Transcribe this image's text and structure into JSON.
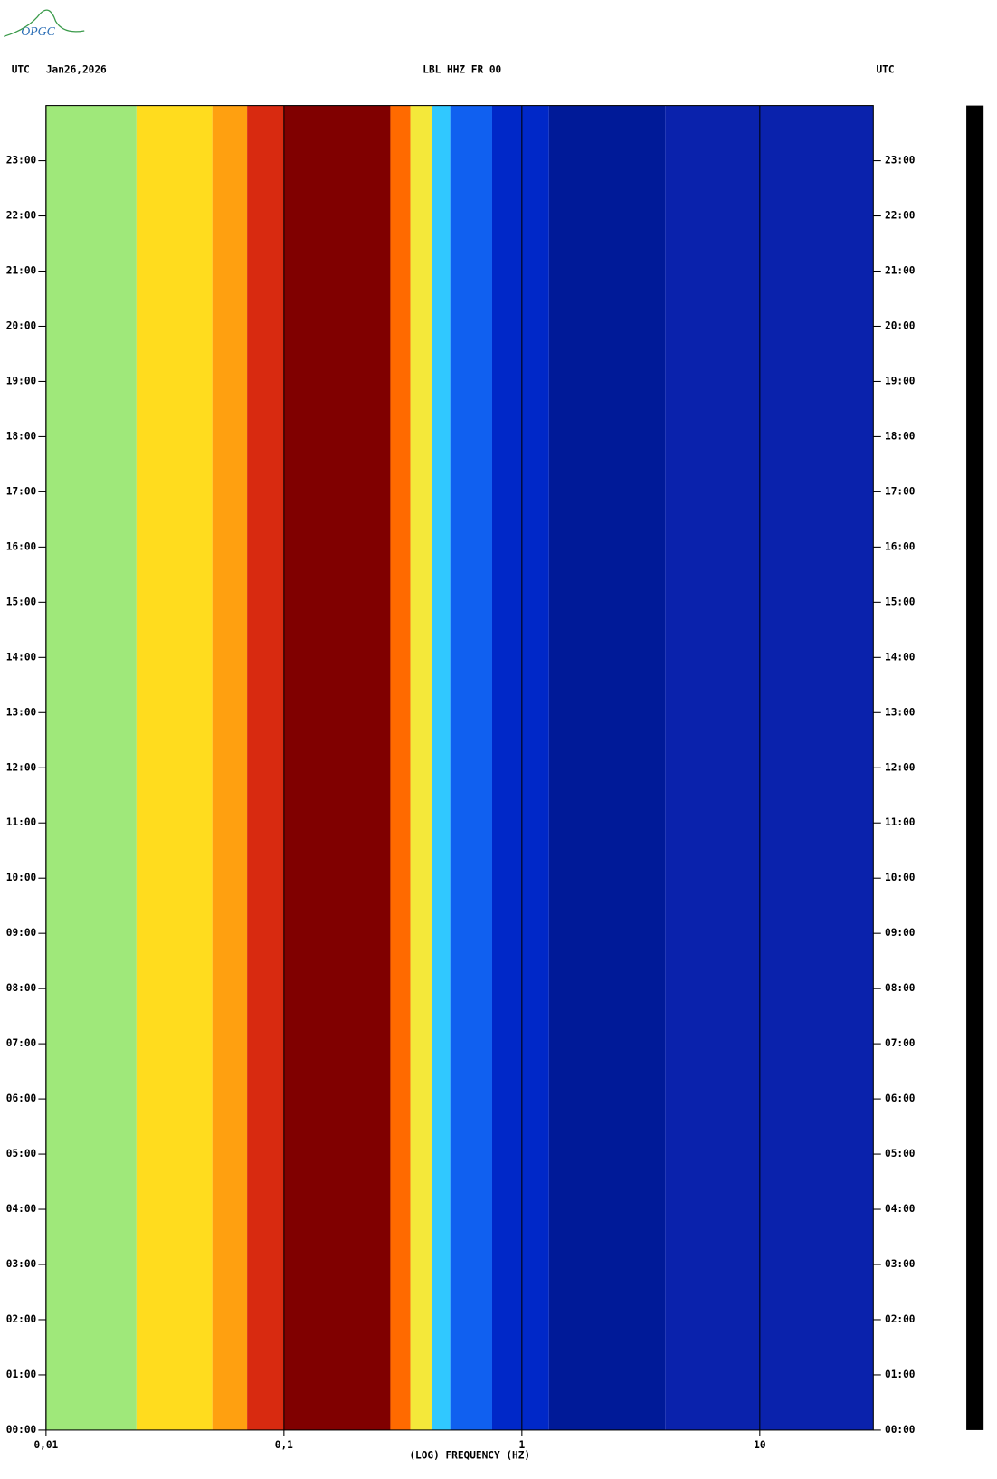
{
  "logo": "OPGC",
  "chart_data": {
    "type": "spectrogram",
    "title": "LBL HHZ FR 00",
    "left_header": "UTC",
    "date": "Jan26,2026",
    "right_header": "UTC",
    "x_label": "(LOG) FREQUENCY (HZ)",
    "x_log": true,
    "xlim": [
      0.01,
      30
    ],
    "xticks": [
      {
        "value": 0.01,
        "label": "0,01"
      },
      {
        "value": 0.1,
        "label": "0,1"
      },
      1,
      10
    ],
    "ylim": [
      0,
      24
    ],
    "yticks": [
      {
        "value": 0,
        "label": "00:00"
      },
      {
        "value": 1,
        "label": "01:00"
      },
      {
        "value": 2,
        "label": "02:00"
      },
      {
        "value": 3,
        "label": "03:00"
      },
      {
        "value": 4,
        "label": "04:00"
      },
      {
        "value": 5,
        "label": "05:00"
      },
      {
        "value": 6,
        "label": "06:00"
      },
      {
        "value": 7,
        "label": "07:00"
      },
      {
        "value": 8,
        "label": "08:00"
      },
      {
        "value": 9,
        "label": "09:00"
      },
      {
        "value": 10,
        "label": "10:00"
      },
      {
        "value": 11,
        "label": "11:00"
      },
      {
        "value": 12,
        "label": "12:00"
      },
      {
        "value": 13,
        "label": "13:00"
      },
      {
        "value": 14,
        "label": "14:00"
      },
      {
        "value": 15,
        "label": "15:00"
      },
      {
        "value": 16,
        "label": "16:00"
      },
      {
        "value": 17,
        "label": "17:00"
      },
      {
        "value": 18,
        "label": "18:00"
      },
      {
        "value": 19,
        "label": "19:00"
      },
      {
        "value": 20,
        "label": "20:00"
      },
      {
        "value": 21,
        "label": "21:00"
      },
      {
        "value": 22,
        "label": "22:00"
      },
      {
        "value": 23,
        "label": "23:00"
      }
    ],
    "band_edges": [
      0.01,
      0.024,
      0.05,
      0.07,
      0.1,
      0.28,
      0.34,
      0.42,
      0.5,
      0.75,
      1.3,
      4,
      30
    ],
    "band_colors": [
      "#9fe87a",
      "#ffdc1e",
      "#ffa010",
      "#d82a10",
      "#800000",
      "#ff6a00",
      "#f4e83a",
      "#30c8ff",
      "#1060f0",
      "#0028c8",
      "#001a98",
      "#0a22ac"
    ],
    "grid": true
  }
}
